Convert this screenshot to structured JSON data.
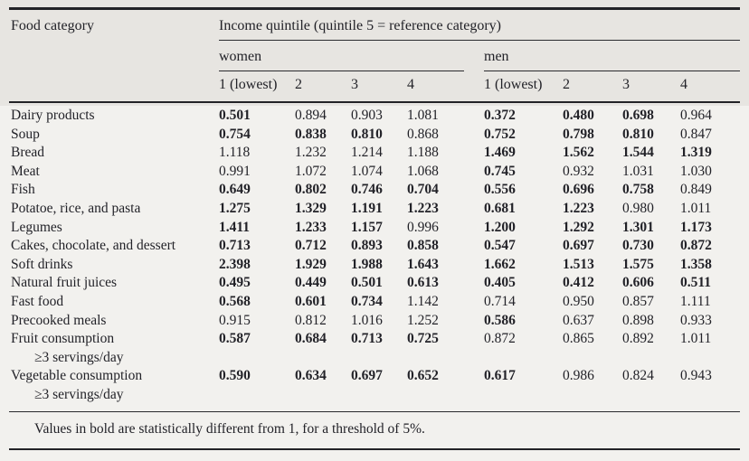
{
  "colors": {
    "header_band": "#e7e5e1",
    "page_bg": "#f2f1ee",
    "text": "#222228"
  },
  "table": {
    "food_category_header": "Food category",
    "income_quintile_header": "Income quintile (quintile 5 = reference category)",
    "groups": {
      "women": "women",
      "men": "men"
    },
    "quintile_labels": [
      "1 (lowest)",
      "2",
      "3",
      "4"
    ],
    "rows": [
      {
        "label": "Dairy products",
        "sublabel": "",
        "women": [
          "0.501",
          "0.894",
          "0.903",
          "1.081"
        ],
        "women_bold": [
          true,
          false,
          false,
          false
        ],
        "men": [
          "0.372",
          "0.480",
          "0.698",
          "0.964"
        ],
        "men_bold": [
          true,
          true,
          true,
          false
        ]
      },
      {
        "label": "Soup",
        "sublabel": "",
        "women": [
          "0.754",
          "0.838",
          "0.810",
          "0.868"
        ],
        "women_bold": [
          true,
          true,
          true,
          false
        ],
        "men": [
          "0.752",
          "0.798",
          "0.810",
          "0.847"
        ],
        "men_bold": [
          true,
          true,
          true,
          false
        ]
      },
      {
        "label": "Bread",
        "sublabel": "",
        "women": [
          "1.118",
          "1.232",
          "1.214",
          "1.188"
        ],
        "women_bold": [
          false,
          false,
          false,
          false
        ],
        "men": [
          "1.469",
          "1.562",
          "1.544",
          "1.319"
        ],
        "men_bold": [
          true,
          true,
          true,
          true
        ]
      },
      {
        "label": "Meat",
        "sublabel": "",
        "women": [
          "0.991",
          "1.072",
          "1.074",
          "1.068"
        ],
        "women_bold": [
          false,
          false,
          false,
          false
        ],
        "men": [
          "0.745",
          "0.932",
          "1.031",
          "1.030"
        ],
        "men_bold": [
          true,
          false,
          false,
          false
        ]
      },
      {
        "label": "Fish",
        "sublabel": "",
        "women": [
          "0.649",
          "0.802",
          "0.746",
          "0.704"
        ],
        "women_bold": [
          true,
          true,
          true,
          true
        ],
        "men": [
          "0.556",
          "0.696",
          "0.758",
          "0.849"
        ],
        "men_bold": [
          true,
          true,
          true,
          false
        ]
      },
      {
        "label": "Potatoe, rice, and pasta",
        "sublabel": "",
        "women": [
          "1.275",
          "1.329",
          "1.191",
          "1.223"
        ],
        "women_bold": [
          true,
          true,
          true,
          true
        ],
        "men": [
          "0.681",
          "1.223",
          "0.980",
          "1.011"
        ],
        "men_bold": [
          true,
          true,
          false,
          false
        ]
      },
      {
        "label": "Legumes",
        "sublabel": "",
        "women": [
          "1.411",
          "1.233",
          "1.157",
          "0.996"
        ],
        "women_bold": [
          true,
          true,
          true,
          false
        ],
        "men": [
          "1.200",
          "1.292",
          "1.301",
          "1.173"
        ],
        "men_bold": [
          true,
          true,
          true,
          true
        ]
      },
      {
        "label": "Cakes, chocolate, and dessert",
        "sublabel": "",
        "women": [
          "0.713",
          "0.712",
          "0.893",
          "0.858"
        ],
        "women_bold": [
          true,
          true,
          true,
          true
        ],
        "men": [
          "0.547",
          "0.697",
          "0.730",
          "0.872"
        ],
        "men_bold": [
          true,
          true,
          true,
          true
        ]
      },
      {
        "label": "Soft drinks",
        "sublabel": "",
        "women": [
          "2.398",
          "1.929",
          "1.988",
          "1.643"
        ],
        "women_bold": [
          true,
          true,
          true,
          true
        ],
        "men": [
          "1.662",
          "1.513",
          "1.575",
          "1.358"
        ],
        "men_bold": [
          true,
          true,
          true,
          true
        ]
      },
      {
        "label": "Natural fruit juices",
        "sublabel": "",
        "women": [
          "0.495",
          "0.449",
          "0.501",
          "0.613"
        ],
        "women_bold": [
          true,
          true,
          true,
          true
        ],
        "men": [
          "0.405",
          "0.412",
          "0.606",
          "0.511"
        ],
        "men_bold": [
          true,
          true,
          true,
          true
        ]
      },
      {
        "label": "Fast food",
        "sublabel": "",
        "women": [
          "0.568",
          "0.601",
          "0.734",
          "1.142"
        ],
        "women_bold": [
          true,
          true,
          true,
          false
        ],
        "men": [
          "0.714",
          "0.950",
          "0.857",
          "1.111"
        ],
        "men_bold": [
          false,
          false,
          false,
          false
        ]
      },
      {
        "label": "Precooked meals",
        "sublabel": "",
        "women": [
          "0.915",
          "0.812",
          "1.016",
          "1.252"
        ],
        "women_bold": [
          false,
          false,
          false,
          false
        ],
        "men": [
          "0.586",
          "0.637",
          "0.898",
          "0.933"
        ],
        "men_bold": [
          true,
          false,
          false,
          false
        ]
      },
      {
        "label": "Fruit consumption",
        "sublabel": "≥3 servings/day",
        "women": [
          "0.587",
          "0.684",
          "0.713",
          "0.725"
        ],
        "women_bold": [
          true,
          true,
          true,
          true
        ],
        "men": [
          "0.872",
          "0.865",
          "0.892",
          "1.011"
        ],
        "men_bold": [
          false,
          false,
          false,
          false
        ]
      },
      {
        "label": "Vegetable consumption",
        "sublabel": "≥3 servings/day",
        "women": [
          "0.590",
          "0.634",
          "0.697",
          "0.652"
        ],
        "women_bold": [
          true,
          true,
          true,
          true
        ],
        "men": [
          "0.617",
          "0.986",
          "0.824",
          "0.943"
        ],
        "men_bold": [
          true,
          false,
          false,
          false
        ]
      }
    ],
    "footnote": "Values in bold are statistically different from 1, for a threshold of 5%."
  }
}
